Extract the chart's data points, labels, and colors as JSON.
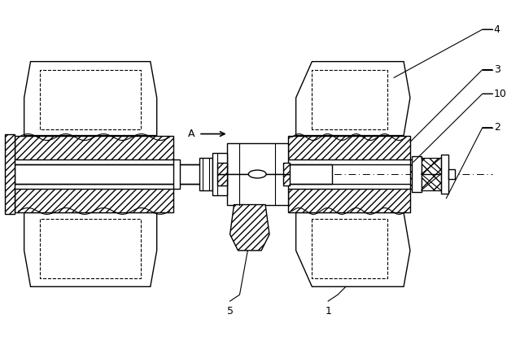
{
  "bg_color": "#ffffff",
  "line_color": "#000000",
  "fig_width": 6.23,
  "fig_height": 4.24,
  "dpi": 100
}
